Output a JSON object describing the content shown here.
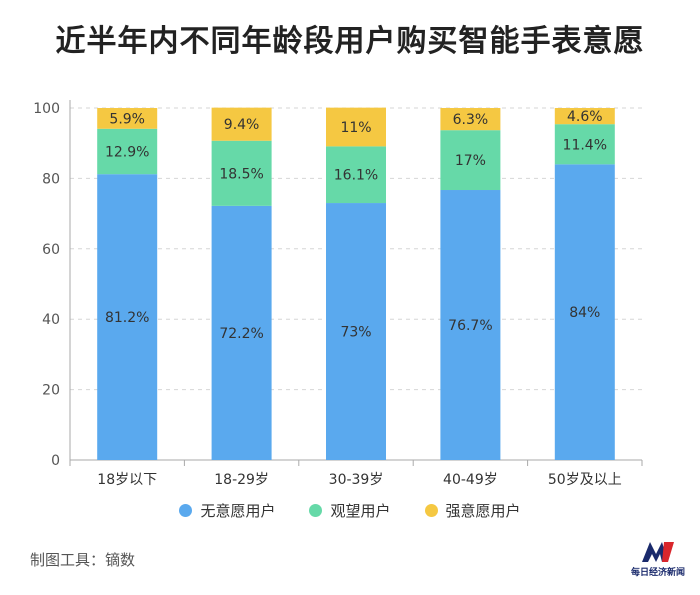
{
  "title": "近半年内不同年龄段用户购买智能手表意愿",
  "colors": {
    "无意愿用户": "#5aa9ee",
    "观望用户": "#66d9a8",
    "强意愿用户": "#f5c842"
  },
  "chart_data": {
    "type": "bar",
    "stacked": true,
    "categories": [
      "18岁以下",
      "18-29岁",
      "30-39岁",
      "40-49岁",
      "50岁及以上"
    ],
    "series": [
      {
        "name": "无意愿用户",
        "values": [
          81.2,
          72.2,
          73,
          76.7,
          84
        ],
        "labels": [
          "81.2%",
          "72.2%",
          "73%",
          "76.7%",
          "84%"
        ]
      },
      {
        "name": "观望用户",
        "values": [
          12.9,
          18.5,
          16.1,
          17,
          11.4
        ],
        "labels": [
          "12.9%",
          "18.5%",
          "16.1%",
          "17%",
          "11.4%"
        ]
      },
      {
        "name": "强意愿用户",
        "values": [
          5.9,
          9.4,
          11,
          6.3,
          4.6
        ],
        "labels": [
          "5.9%",
          "9.4%",
          "11%",
          "6.3%",
          "4.6%"
        ]
      }
    ],
    "yticks": [
      "0",
      "20",
      "40",
      "60",
      "80",
      "100"
    ],
    "ylim": [
      0,
      100
    ],
    "grid": true,
    "legend_position": "bottom"
  },
  "legend": [
    {
      "label": "无意愿用户",
      "color": "#5aa9ee"
    },
    {
      "label": "观望用户",
      "color": "#66d9a8"
    },
    {
      "label": "强意愿用户",
      "color": "#f5c842"
    }
  ],
  "footer": {
    "source": "制图工具：镝数",
    "logo_text": "每日经济新闻"
  }
}
